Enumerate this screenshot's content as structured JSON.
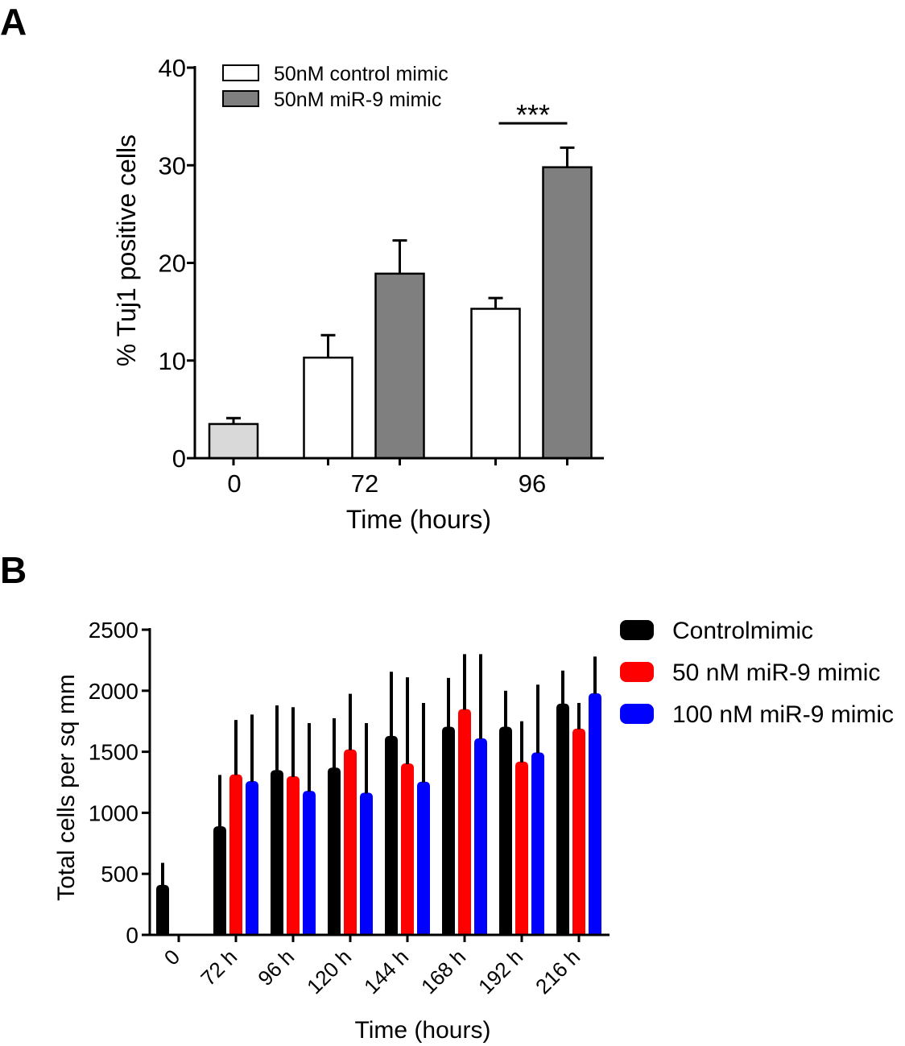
{
  "chart_data": [
    {
      "panel_label": "A",
      "type": "bar",
      "xlabel": "Time (hours)",
      "ylabel": "% Tuj1 positive cells",
      "categories": [
        "0",
        "72",
        "96"
      ],
      "ylim": [
        0,
        40
      ],
      "yticks": [
        0,
        10,
        20,
        30,
        40
      ],
      "grid": false,
      "legend_position": "top-left",
      "axis_color": "#000000",
      "baseline": {
        "category": "0",
        "value": 3.5,
        "error": 0.6,
        "color": "#d9d9d9"
      },
      "series": [
        {
          "name": "50nM control mimic",
          "color": "#ffffff",
          "values": [
            null,
            10.3,
            15.3
          ],
          "errors": [
            null,
            2.3,
            1.1
          ]
        },
        {
          "name": "50nM miR-9 mimic",
          "color": "#7f7f7f",
          "values": [
            null,
            18.9,
            29.8
          ],
          "errors": [
            null,
            3.4,
            2.0
          ]
        }
      ],
      "annotations": [
        {
          "text": "***",
          "category": "96",
          "between_series": [
            0,
            1
          ]
        }
      ]
    },
    {
      "panel_label": "B",
      "type": "bar",
      "xlabel": "Time (hours)",
      "ylabel": "Total cells per sq mm",
      "categories": [
        "0",
        "72 h",
        "96 h",
        "120 h",
        "144 h",
        "168 h",
        "192 h",
        "216 h"
      ],
      "ylim": [
        0,
        2500
      ],
      "yticks": [
        0,
        500,
        1000,
        1500,
        2000,
        2500
      ],
      "grid": false,
      "legend_position": "right",
      "axis_color": "#000000",
      "error_bar_color": "#000000",
      "series": [
        {
          "name": "Controlmimic",
          "color": "#000000",
          "values": [
            410,
            890,
            1350,
            1370,
            1630,
            1705,
            1705,
            1895
          ],
          "errors": [
            180,
            420,
            530,
            405,
            525,
            400,
            295,
            270
          ]
        },
        {
          "name": "50 nM miR-9 mimic",
          "color": "#ff0000",
          "values": [
            null,
            1315,
            1300,
            1520,
            1405,
            1850,
            1420,
            1690
          ],
          "errors": [
            null,
            445,
            565,
            455,
            705,
            450,
            330,
            210
          ]
        },
        {
          "name": "100 nM miR-9 mimic",
          "color": "#0000ff",
          "values": [
            null,
            1260,
            1180,
            1165,
            1255,
            1610,
            1495,
            1980
          ],
          "errors": [
            null,
            545,
            555,
            570,
            645,
            690,
            555,
            300
          ]
        }
      ]
    }
  ]
}
